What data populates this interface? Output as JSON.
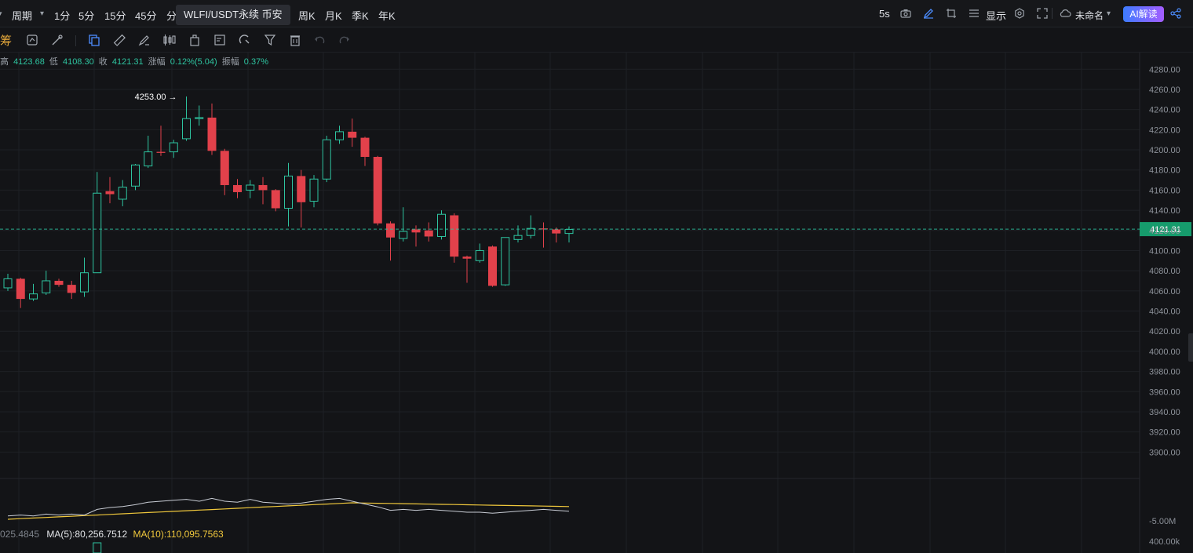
{
  "topbar": {
    "period_label": "周期",
    "intervals": [
      "1分",
      "5分",
      "15分",
      "45分",
      "分"
    ],
    "tooltip": "WLFI/USDT永续 币安",
    "intervals_right": [
      "周K",
      "月K",
      "季K",
      "年K"
    ],
    "refresh": "5s",
    "display_label": "显示",
    "layout_name": "未命名",
    "ai_label": "AI解读"
  },
  "toolbar": {
    "chip_label": "筹"
  },
  "ohlc": {
    "high_label": "高",
    "high": "4123.68",
    "low_label": "低",
    "low": "4108.30",
    "close_label": "收",
    "close": "4121.31",
    "change_label": "涨幅",
    "change": "0.12%(5.04)",
    "amp_label": "振幅",
    "amp": "0.37%"
  },
  "volume_legend": {
    "prefix": "025.4845",
    "ma5": "MA(5):80,256.7512",
    "ma10": "MA(10):110,095.7563"
  },
  "colors": {
    "up": "#2ec4a0",
    "down": "#e2414b",
    "ma10": "#f0c83c",
    "ma5": "#c8ccd4",
    "last_price_bg": "#169b6c"
  },
  "chart_data": {
    "type": "candlestick",
    "ylim": [
      3880,
      4288
    ],
    "y_ticks": [
      4280,
      4260,
      4240,
      4220,
      4200,
      4180,
      4160,
      4140,
      4120,
      4100,
      4080,
      4060,
      4040,
      4020,
      4000,
      3980,
      3960,
      3940,
      3920,
      3900
    ],
    "y_tick_labels": [
      "4280.00",
      "4260.00",
      "4240.00",
      "4220.00",
      "4200.00",
      "4180.00",
      "4160.00",
      "4140.00",
      "4120.00",
      "4100.00",
      "4080.00",
      "4060.00",
      "4040.00",
      "4020.00",
      "4000.00",
      "3980.00",
      "3960.00",
      "3940.00",
      "3920.00",
      "3900.00"
    ],
    "last_price": 4121.31,
    "last_price_label": "4121.31",
    "max_marker_label": "4253.00",
    "max_marker_value": 4253.0,
    "candles": [
      {
        "o": 4063,
        "h": 4077,
        "l": 4060,
        "c": 4072
      },
      {
        "o": 4072,
        "h": 4073,
        "l": 4043,
        "c": 4052
      },
      {
        "o": 4052,
        "h": 4067,
        "l": 4050,
        "c": 4057
      },
      {
        "o": 4058,
        "h": 4080,
        "l": 4056,
        "c": 4070
      },
      {
        "o": 4070,
        "h": 4072,
        "l": 4064,
        "c": 4066
      },
      {
        "o": 4066,
        "h": 4070,
        "l": 4052,
        "c": 4058
      },
      {
        "o": 4059,
        "h": 4093,
        "l": 4054,
        "c": 4078
      },
      {
        "o": 4078,
        "h": 4178,
        "l": 4078,
        "c": 4157
      },
      {
        "o": 4159,
        "h": 4173,
        "l": 4147,
        "c": 4156
      },
      {
        "o": 4151,
        "h": 4170,
        "l": 4144,
        "c": 4163
      },
      {
        "o": 4164,
        "h": 4186,
        "l": 4160,
        "c": 4185
      },
      {
        "o": 4184,
        "h": 4214,
        "l": 4182,
        "c": 4198
      },
      {
        "o": 4198,
        "h": 4224,
        "l": 4194,
        "c": 4197
      },
      {
        "o": 4198,
        "h": 4210,
        "l": 4192,
        "c": 4207
      },
      {
        "o": 4211,
        "h": 4253,
        "l": 4209,
        "c": 4231
      },
      {
        "o": 4231,
        "h": 4244,
        "l": 4224,
        "c": 4232
      },
      {
        "o": 4232,
        "h": 4246,
        "l": 4195,
        "c": 4199
      },
      {
        "o": 4199,
        "h": 4201,
        "l": 4155,
        "c": 4165
      },
      {
        "o": 4165,
        "h": 4171,
        "l": 4152,
        "c": 4158
      },
      {
        "o": 4160,
        "h": 4170,
        "l": 4152,
        "c": 4165
      },
      {
        "o": 4165,
        "h": 4173,
        "l": 4146,
        "c": 4160
      },
      {
        "o": 4160,
        "h": 4161,
        "l": 4139,
        "c": 4142
      },
      {
        "o": 4142,
        "h": 4187,
        "l": 4124,
        "c": 4174
      },
      {
        "o": 4174,
        "h": 4180,
        "l": 4123,
        "c": 4148
      },
      {
        "o": 4149,
        "h": 4175,
        "l": 4143,
        "c": 4171
      },
      {
        "o": 4171,
        "h": 4214,
        "l": 4168,
        "c": 4210
      },
      {
        "o": 4210,
        "h": 4224,
        "l": 4206,
        "c": 4218
      },
      {
        "o": 4218,
        "h": 4231,
        "l": 4203,
        "c": 4212
      },
      {
        "o": 4212,
        "h": 4213,
        "l": 4184,
        "c": 4193
      },
      {
        "o": 4193,
        "h": 4194,
        "l": 4125,
        "c": 4127
      },
      {
        "o": 4127,
        "h": 4129,
        "l": 4090,
        "c": 4113
      },
      {
        "o": 4112,
        "h": 4143,
        "l": 4109,
        "c": 4119
      },
      {
        "o": 4121,
        "h": 4125,
        "l": 4104,
        "c": 4118
      },
      {
        "o": 4120,
        "h": 4128,
        "l": 4109,
        "c": 4114
      },
      {
        "o": 4114,
        "h": 4140,
        "l": 4111,
        "c": 4136
      },
      {
        "o": 4135,
        "h": 4137,
        "l": 4088,
        "c": 4094
      },
      {
        "o": 4094,
        "h": 4095,
        "l": 4068,
        "c": 4092
      },
      {
        "o": 4090,
        "h": 4107,
        "l": 4088,
        "c": 4100
      },
      {
        "o": 4104,
        "h": 4105,
        "l": 4064,
        "c": 4065
      },
      {
        "o": 4066,
        "h": 4111,
        "l": 4065,
        "c": 4113
      },
      {
        "o": 4111,
        "h": 4125,
        "l": 4108,
        "c": 4115
      },
      {
        "o": 4115,
        "h": 4135,
        "l": 4112,
        "c": 4122
      },
      {
        "o": 4122,
        "h": 4128,
        "l": 4103,
        "c": 4121
      },
      {
        "o": 4121,
        "h": 4123,
        "l": 4108,
        "c": 4117
      },
      {
        "o": 4117,
        "h": 4124,
        "l": 4108,
        "c": 4121
      }
    ],
    "volume_axis_labels": [
      "-5.00M",
      "400.00k"
    ]
  }
}
